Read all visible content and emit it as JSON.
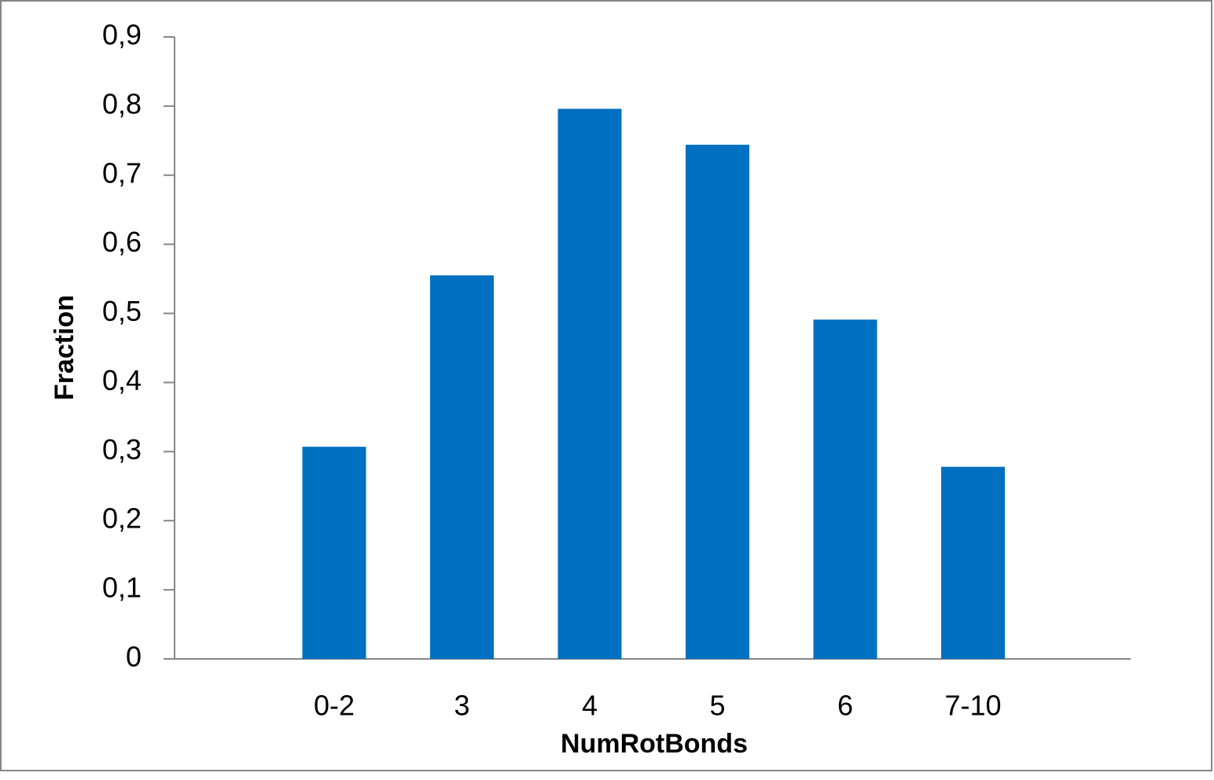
{
  "chart_data": {
    "type": "bar",
    "x_label": "NumRotBonds",
    "y_label": "Fraction",
    "categories": [
      null,
      "0-2",
      "3",
      "4",
      "5",
      "6",
      "7-10",
      null
    ],
    "values": [
      null,
      0.307,
      0.555,
      0.796,
      0.744,
      0.491,
      0.278,
      null
    ],
    "color": "#0070c0",
    "ylim": [
      0,
      0.9
    ],
    "yticks": [
      0,
      {
        "value": 0.1,
        "label": "0,1"
      },
      {
        "value": 0.2,
        "label": "0,2"
      },
      {
        "value": 0.3,
        "label": "0,3"
      },
      {
        "value": 0.4,
        "label": "0,4"
      },
      {
        "value": 0.5,
        "label": "0,5"
      },
      {
        "value": 0.6,
        "label": "0,6"
      },
      {
        "value": 0.7,
        "label": "0,7"
      },
      {
        "value": 0.8,
        "label": "0,8"
      },
      {
        "value": 0.9,
        "label": "0,9"
      }
    ],
    "grid": false
  }
}
